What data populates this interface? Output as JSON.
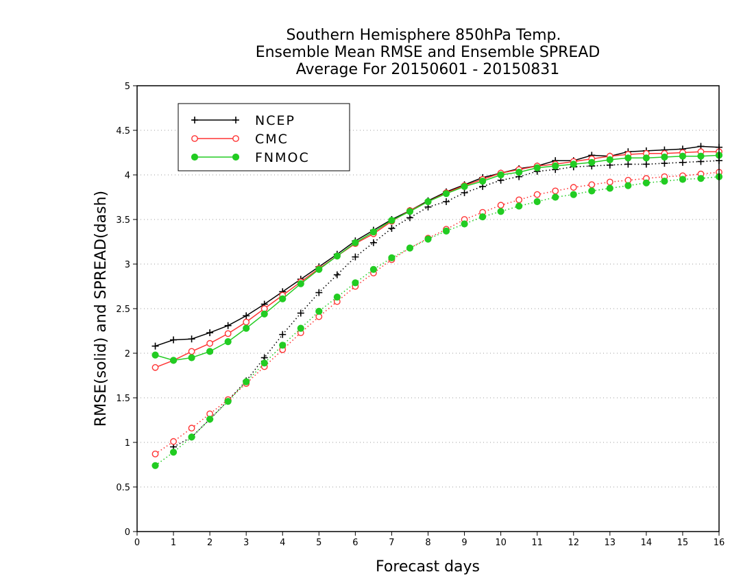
{
  "chart_data": {
    "type": "line",
    "title": [
      "Southern Hemisphere 850hPa Temp.",
      "Ensemble Mean RMSE and Ensemble SPREAD",
      "Average For 20150601 - 20150831"
    ],
    "xlabel": "Forecast days",
    "ylabel": "RMSE(solid) and SPREAD(dash)",
    "xlim": [
      0,
      16
    ],
    "ylim": [
      0,
      5
    ],
    "x_ticks": [
      "0",
      "1",
      "2",
      "3",
      "4",
      "5",
      "6",
      "7",
      "8",
      "9",
      "10",
      "11",
      "12",
      "13",
      "14",
      "15",
      "16"
    ],
    "y_ticks": [
      "0",
      "0.5",
      "1",
      "1.5",
      "2",
      "2.5",
      "3",
      "3.5",
      "4",
      "4.5",
      "5"
    ],
    "grid": "horizontal dotted",
    "legend_position": "top-left",
    "x": [
      0.5,
      1,
      1.5,
      2,
      2.5,
      3,
      3.5,
      4,
      4.5,
      5,
      5.5,
      6,
      6.5,
      7,
      7.5,
      8,
      8.5,
      9,
      9.5,
      10,
      10.5,
      11,
      11.5,
      12,
      12.5,
      13,
      13.5,
      14,
      14.5,
      15,
      15.5,
      16
    ],
    "series": [
      {
        "name": "NCEP",
        "color": "#000000",
        "marker": "plus",
        "rmse": [
          2.08,
          2.15,
          2.16,
          2.23,
          2.31,
          2.42,
          2.55,
          2.69,
          2.83,
          2.97,
          3.11,
          3.26,
          3.38,
          3.5,
          3.6,
          3.71,
          3.81,
          3.89,
          3.97,
          4.02,
          4.07,
          4.1,
          4.16,
          4.16,
          4.22,
          4.21,
          4.26,
          4.27,
          4.28,
          4.29,
          4.32,
          4.31
        ],
        "spread": [
          null,
          0.95,
          1.06,
          1.26,
          1.47,
          1.69,
          1.95,
          2.21,
          2.45,
          2.68,
          2.88,
          3.08,
          3.24,
          3.4,
          3.52,
          3.64,
          3.7,
          3.8,
          3.87,
          3.94,
          3.98,
          4.04,
          4.06,
          4.09,
          4.1,
          4.11,
          4.12,
          4.12,
          4.13,
          4.14,
          4.15,
          4.16
        ]
      },
      {
        "name": "CMC",
        "color": "#ff3333",
        "marker": "open-circle",
        "rmse": [
          1.84,
          1.92,
          2.02,
          2.11,
          2.22,
          2.35,
          2.5,
          2.65,
          2.8,
          2.95,
          3.09,
          3.23,
          3.34,
          3.48,
          3.6,
          3.7,
          3.8,
          3.88,
          3.95,
          4.02,
          4.06,
          4.1,
          4.12,
          4.15,
          4.18,
          4.21,
          4.23,
          4.24,
          4.24,
          4.25,
          4.26,
          4.26
        ],
        "spread": [
          0.87,
          1.01,
          1.16,
          1.32,
          1.48,
          1.66,
          1.85,
          2.04,
          2.23,
          2.41,
          2.58,
          2.75,
          2.9,
          3.05,
          3.18,
          3.29,
          3.39,
          3.5,
          3.58,
          3.66,
          3.72,
          3.78,
          3.82,
          3.86,
          3.89,
          3.92,
          3.94,
          3.96,
          3.98,
          3.99,
          4.01,
          4.03
        ]
      },
      {
        "name": "FNMOC",
        "color": "#22cc22",
        "marker": "filled-circle",
        "rmse": [
          1.98,
          1.92,
          1.95,
          2.02,
          2.13,
          2.28,
          2.44,
          2.61,
          2.78,
          2.94,
          3.09,
          3.24,
          3.36,
          3.49,
          3.59,
          3.7,
          3.79,
          3.87,
          3.93,
          4.0,
          4.03,
          4.08,
          4.1,
          4.12,
          4.14,
          4.17,
          4.19,
          4.19,
          4.2,
          4.21,
          4.21,
          4.22
        ],
        "spread": [
          0.74,
          0.89,
          1.06,
          1.26,
          1.46,
          1.68,
          1.89,
          2.09,
          2.28,
          2.47,
          2.63,
          2.79,
          2.94,
          3.07,
          3.18,
          3.28,
          3.37,
          3.45,
          3.53,
          3.59,
          3.65,
          3.7,
          3.75,
          3.78,
          3.82,
          3.85,
          3.88,
          3.91,
          3.93,
          3.95,
          3.96,
          3.98
        ]
      }
    ]
  }
}
